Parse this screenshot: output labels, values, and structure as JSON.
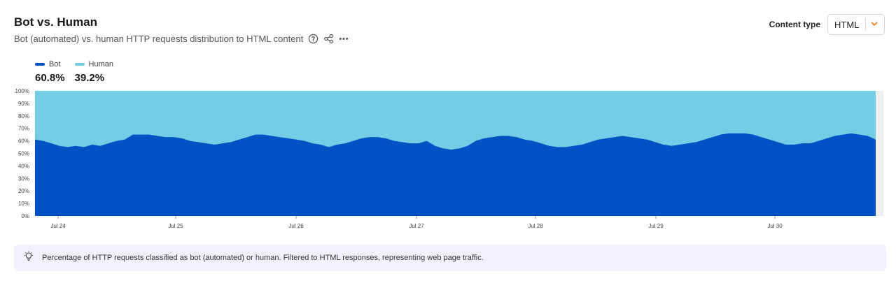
{
  "header": {
    "title": "Bot vs. Human",
    "subtitle": "Bot (automated) vs. human HTTP requests distribution to HTML content"
  },
  "controls": {
    "content_type_label": "Content type",
    "content_type_value": "HTML"
  },
  "colors": {
    "bot": "#0051c3",
    "human": "#73cde4",
    "accent": "#f6821f"
  },
  "icons": [
    "help-circle-icon",
    "share-icon",
    "more-icon",
    "chevron-down-icon",
    "lightbulb-icon"
  ],
  "legend": [
    {
      "name": "Bot",
      "value": "60.8%"
    },
    {
      "name": "Human",
      "value": "39.2%"
    }
  ],
  "chart_data": {
    "type": "area",
    "stacked": true,
    "x_labels": [
      "Jul 24",
      "Jul 25",
      "Jul 26",
      "Jul 27",
      "Jul 28",
      "Jul 29",
      "Jul 30"
    ],
    "x_start": "Jul 23 22:00",
    "x_end": "Jul 30 20:00",
    "y_ticks": [
      "0%",
      "10%",
      "20%",
      "30%",
      "40%",
      "50%",
      "60%",
      "70%",
      "80%",
      "90%",
      "100%"
    ],
    "ylim": [
      0,
      100
    ],
    "series": [
      {
        "name": "Bot",
        "values": [
          61,
          60,
          58,
          56,
          55,
          56,
          55,
          57,
          56,
          58,
          60,
          61,
          65,
          65,
          65,
          64,
          63,
          63,
          62,
          60,
          59,
          58,
          57,
          58,
          59,
          61,
          63,
          65,
          65,
          64,
          63,
          62,
          61,
          60,
          58,
          57,
          55,
          57,
          58,
          60,
          62,
          63,
          63,
          62,
          60,
          59,
          58,
          58,
          60,
          56,
          54,
          53,
          54,
          56,
          60,
          62,
          63,
          64,
          64,
          63,
          61,
          60,
          58,
          56,
          55,
          55,
          56,
          57,
          59,
          61,
          62,
          63,
          64,
          63,
          62,
          61,
          59,
          57,
          56,
          57,
          58,
          59,
          61,
          63,
          65,
          66,
          66,
          66,
          65,
          63,
          61,
          59,
          57,
          57,
          58,
          58,
          60,
          62,
          64,
          65,
          66,
          65,
          64,
          61
        ]
      },
      {
        "name": "Human",
        "values": [
          39,
          40,
          42,
          44,
          45,
          44,
          45,
          43,
          44,
          42,
          40,
          39,
          35,
          35,
          35,
          36,
          37,
          37,
          38,
          40,
          41,
          42,
          43,
          42,
          41,
          39,
          37,
          35,
          35,
          36,
          37,
          38,
          39,
          40,
          42,
          43,
          45,
          43,
          42,
          40,
          38,
          37,
          37,
          38,
          40,
          41,
          42,
          42,
          40,
          44,
          46,
          47,
          46,
          44,
          40,
          38,
          37,
          36,
          36,
          37,
          39,
          40,
          42,
          44,
          45,
          45,
          44,
          43,
          41,
          39,
          38,
          37,
          36,
          37,
          38,
          39,
          41,
          43,
          44,
          43,
          42,
          41,
          39,
          37,
          35,
          34,
          34,
          34,
          35,
          37,
          39,
          41,
          43,
          43,
          42,
          42,
          40,
          38,
          36,
          35,
          34,
          35,
          36,
          39
        ]
      }
    ]
  },
  "note": {
    "text": "Percentage of HTTP requests classified as bot (automated) or human. Filtered to HTML responses, representing web page traffic."
  }
}
